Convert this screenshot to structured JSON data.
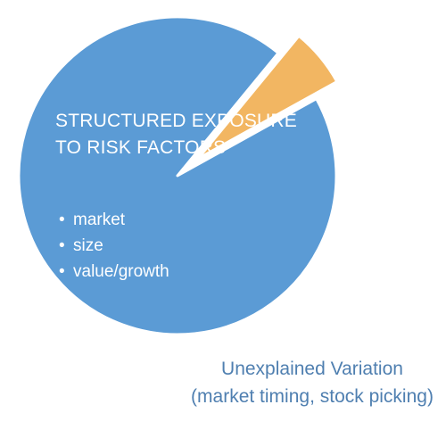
{
  "chart_data": {
    "type": "pie",
    "slices": [
      {
        "label_lines": [
          "STRUCTURED EXPOSURE",
          "TO RISK FACTORS"
        ],
        "bullets": [
          "market",
          "size",
          "value/growth"
        ],
        "value": 94,
        "color": "#5b9bd5"
      },
      {
        "label_lines": [
          "Unexplained Variation",
          "(market timing, stock picking)"
        ],
        "value": 6,
        "color": "#f2b662"
      }
    ],
    "exploded_slice": 1,
    "start_angle_deg": -29,
    "legend": "none"
  }
}
